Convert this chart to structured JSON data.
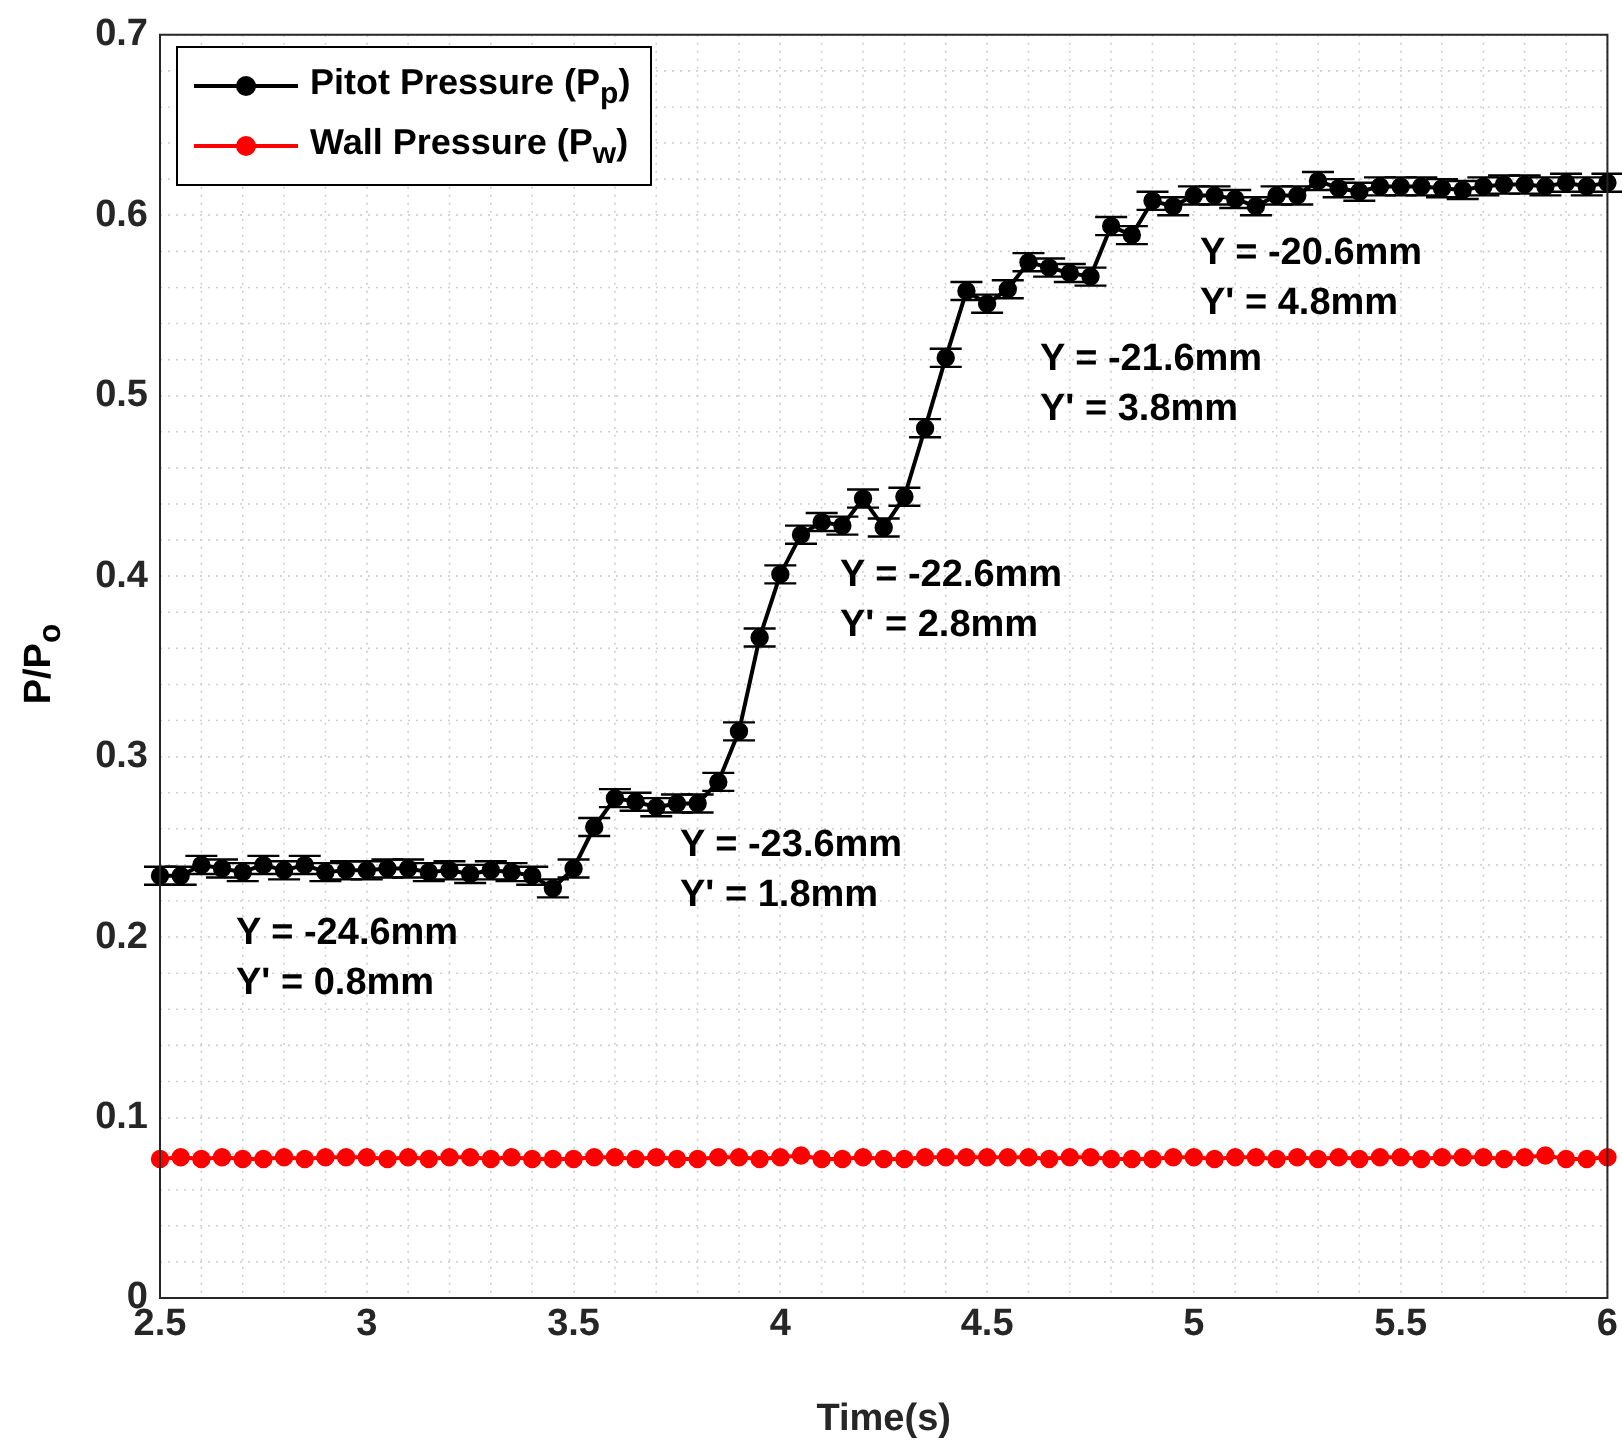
{
  "chart_data": {
    "type": "line",
    "xlabel": "Time(s)",
    "ylabel": "P/P$_{o}$",
    "x": [
      2.5,
      2.55,
      2.6,
      2.65,
      2.7,
      2.75,
      2.8,
      2.85,
      2.9,
      2.95,
      3.0,
      3.05,
      3.1,
      3.15,
      3.2,
      3.25,
      3.3,
      3.35,
      3.4,
      3.45,
      3.5,
      3.55,
      3.6,
      3.65,
      3.7,
      3.75,
      3.8,
      3.85,
      3.9,
      3.95,
      4.0,
      4.05,
      4.1,
      4.15,
      4.2,
      4.25,
      4.3,
      4.35,
      4.4,
      4.45,
      4.5,
      4.55,
      4.6,
      4.65,
      4.7,
      4.75,
      4.8,
      4.85,
      4.9,
      4.95,
      5.0,
      5.05,
      5.1,
      5.15,
      5.2,
      5.25,
      5.3,
      5.35,
      5.4,
      5.45,
      5.5,
      5.55,
      5.6,
      5.65,
      5.7,
      5.75,
      5.8,
      5.85,
      5.9,
      5.95,
      6.0
    ],
    "series": [
      {
        "name": "Pitot Pressure (P$_{p}$)",
        "color": "#000000",
        "values": [
          0.234,
          0.234,
          0.24,
          0.238,
          0.236,
          0.24,
          0.237,
          0.24,
          0.236,
          0.237,
          0.237,
          0.238,
          0.238,
          0.236,
          0.237,
          0.235,
          0.237,
          0.236,
          0.234,
          0.227,
          0.238,
          0.261,
          0.277,
          0.275,
          0.272,
          0.274,
          0.274,
          0.286,
          0.314,
          0.366,
          0.401,
          0.423,
          0.43,
          0.428,
          0.443,
          0.427,
          0.444,
          0.482,
          0.521,
          0.558,
          0.551,
          0.559,
          0.574,
          0.571,
          0.568,
          0.566,
          0.594,
          0.589,
          0.608,
          0.605,
          0.611,
          0.611,
          0.609,
          0.605,
          0.611,
          0.611,
          0.619,
          0.615,
          0.613,
          0.616,
          0.616,
          0.616,
          0.615,
          0.614,
          0.616,
          0.617,
          0.617,
          0.616,
          0.618,
          0.616,
          0.618
        ],
        "errors": [
          0.005,
          0.005,
          0.005,
          0.005,
          0.005,
          0.005,
          0.005,
          0.005,
          0.005,
          0.005,
          0.005,
          0.005,
          0.005,
          0.005,
          0.005,
          0.005,
          0.005,
          0.005,
          0.005,
          0.005,
          0.005,
          0.005,
          0.005,
          0.005,
          0.005,
          0.005,
          0.005,
          0.005,
          0.005,
          0.005,
          0.005,
          0.005,
          0.005,
          0.005,
          0.005,
          0.005,
          0.005,
          0.005,
          0.005,
          0.005,
          0.005,
          0.005,
          0.005,
          0.005,
          0.005,
          0.005,
          0.005,
          0.005,
          0.005,
          0.005,
          0.005,
          0.005,
          0.005,
          0.005,
          0.005,
          0.005,
          0.005,
          0.005,
          0.005,
          0.005,
          0.005,
          0.005,
          0.005,
          0.005,
          0.005,
          0.005,
          0.005,
          0.005,
          0.005,
          0.005,
          0.005
        ]
      },
      {
        "name": "Wall Pressure (P$_{w}$)",
        "color": "#ff0000",
        "values": [
          0.077,
          0.078,
          0.077,
          0.078,
          0.077,
          0.077,
          0.078,
          0.077,
          0.078,
          0.078,
          0.078,
          0.077,
          0.078,
          0.077,
          0.078,
          0.078,
          0.077,
          0.078,
          0.077,
          0.077,
          0.077,
          0.078,
          0.078,
          0.077,
          0.078,
          0.077,
          0.077,
          0.078,
          0.078,
          0.077,
          0.078,
          0.079,
          0.077,
          0.077,
          0.078,
          0.077,
          0.077,
          0.078,
          0.078,
          0.078,
          0.078,
          0.078,
          0.078,
          0.077,
          0.078,
          0.078,
          0.077,
          0.077,
          0.077,
          0.078,
          0.078,
          0.077,
          0.078,
          0.078,
          0.077,
          0.078,
          0.077,
          0.078,
          0.077,
          0.078,
          0.078,
          0.077,
          0.078,
          0.078,
          0.078,
          0.077,
          0.078,
          0.079,
          0.077,
          0.077,
          0.078
        ]
      }
    ],
    "xlim": [
      2.5,
      6
    ],
    "xticks": [
      2.5,
      3,
      3.5,
      4,
      4.5,
      5,
      5.5,
      6
    ],
    "ylim": [
      0,
      0.7
    ],
    "yticks": [
      0,
      0.1,
      0.2,
      0.3,
      0.4,
      0.5,
      0.6,
      0.7
    ],
    "annotations": [
      "Y = -24.6mm\nY' = 0.8mm",
      "Y = -23.6mm\nY' = 1.8mm",
      "Y = -22.6mm\nY' = 2.8mm",
      "Y = -21.6mm\nY' = 3.8mm",
      "Y = -20.6mm\nY' = 4.8mm"
    ],
    "grid": true,
    "legend": "top left",
    "marker": "circle",
    "line_style": "solid"
  }
}
